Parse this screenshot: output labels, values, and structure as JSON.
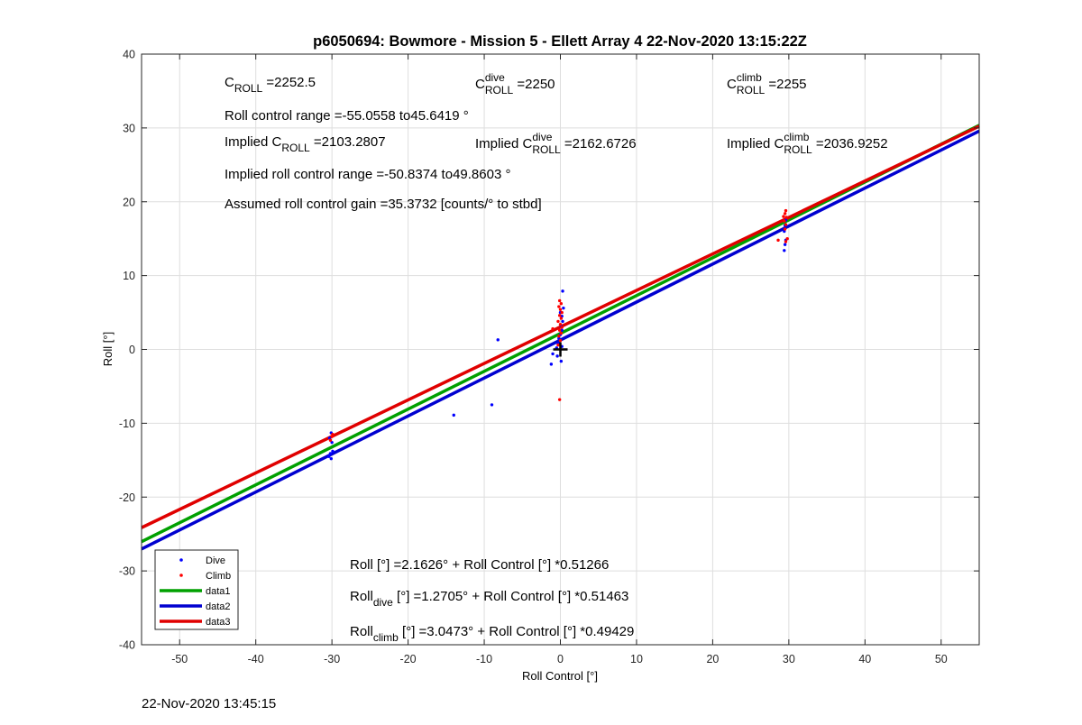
{
  "chart_data": {
    "type": "scatter",
    "title": "p6050694: Bowmore - Mission 5 - Ellett Array 4 22-Nov-2020 13:15:22Z",
    "xlabel": "Roll Control [°]",
    "ylabel": "Roll [°]",
    "xlim": [
      -55,
      55
    ],
    "ylim": [
      -40,
      40
    ],
    "xticks": [
      -50,
      -40,
      -30,
      -20,
      -10,
      0,
      10,
      20,
      30,
      40,
      50
    ],
    "yticks": [
      -40,
      -30,
      -20,
      -10,
      0,
      10,
      20,
      30,
      40
    ],
    "grid": true,
    "legend_position": "bottom-left",
    "series": [
      {
        "name": "Dive",
        "kind": "points",
        "color": "#0000ff",
        "points": [
          [
            -30.1,
            -11.3
          ],
          [
            -30.3,
            -12.0
          ],
          [
            -30.0,
            -12.6
          ],
          [
            -30.2,
            -14.1
          ],
          [
            -30.4,
            -14.5
          ],
          [
            -30.1,
            -14.8
          ],
          [
            -29.9,
            -13.8
          ],
          [
            -14.0,
            -8.9
          ],
          [
            -9.0,
            -7.5
          ],
          [
            -8.2,
            1.3
          ],
          [
            -1.2,
            -2.0
          ],
          [
            -1.0,
            -0.6
          ],
          [
            -0.5,
            0.2
          ],
          [
            -0.3,
            0.8
          ],
          [
            -0.2,
            1.5
          ],
          [
            0.0,
            2.0
          ],
          [
            0.2,
            2.6
          ],
          [
            0.1,
            3.2
          ],
          [
            0.3,
            3.8
          ],
          [
            0.2,
            4.5
          ],
          [
            0.0,
            5.0
          ],
          [
            0.4,
            5.6
          ],
          [
            0.3,
            7.9
          ],
          [
            0.1,
            -1.6
          ],
          [
            -0.4,
            -0.9
          ],
          [
            0.2,
            0.4
          ],
          [
            29.4,
            13.4
          ],
          [
            29.5,
            14.2
          ],
          [
            29.6,
            14.8
          ],
          [
            29.4,
            16.0
          ],
          [
            29.5,
            16.8
          ],
          [
            29.6,
            17.5
          ]
        ]
      },
      {
        "name": "Climb",
        "kind": "points",
        "color": "#ff0000",
        "points": [
          [
            -30.0,
            -11.8
          ],
          [
            -30.2,
            -12.3
          ],
          [
            -29.9,
            -11.5
          ],
          [
            -0.1,
            -6.8
          ],
          [
            -0.3,
            0.6
          ],
          [
            0.0,
            1.2
          ],
          [
            -0.2,
            1.8
          ],
          [
            0.1,
            2.2
          ],
          [
            -0.1,
            2.6
          ],
          [
            0.2,
            3.0
          ],
          [
            0.0,
            3.4
          ],
          [
            -0.3,
            3.8
          ],
          [
            0.1,
            4.2
          ],
          [
            -0.1,
            4.6
          ],
          [
            0.2,
            5.0
          ],
          [
            0.0,
            5.4
          ],
          [
            -0.2,
            5.8
          ],
          [
            0.1,
            6.2
          ],
          [
            -0.1,
            6.6
          ],
          [
            -1.0,
            2.8
          ],
          [
            28.6,
            14.8
          ],
          [
            29.6,
            14.6
          ],
          [
            29.8,
            15.0
          ],
          [
            29.5,
            16.3
          ],
          [
            29.6,
            16.9
          ],
          [
            29.4,
            17.4
          ],
          [
            29.7,
            17.9
          ],
          [
            29.5,
            18.4
          ],
          [
            29.6,
            18.8
          ],
          [
            29.3,
            18.0
          ]
        ]
      },
      {
        "name": "data1",
        "kind": "line",
        "color": "#00a000",
        "intercept": 2.1626,
        "slope": 0.51266
      },
      {
        "name": "data2",
        "kind": "line",
        "color": "#0000d0",
        "intercept": 1.2705,
        "slope": 0.51463
      },
      {
        "name": "data3",
        "kind": "line",
        "color": "#e00000",
        "intercept": 3.0473,
        "slope": 0.49429
      }
    ],
    "origin_marker": {
      "x": 0,
      "y": 0,
      "symbol": "+"
    },
    "annotations": {
      "c_roll": {
        "base": "C",
        "sub": "ROLL",
        "sup": "",
        "value": "=2252.5"
      },
      "c_roll_dive": {
        "base": "C",
        "sub": "ROLL",
        "sup": "dive",
        "value": "=2250"
      },
      "c_roll_climb": {
        "base": "C",
        "sub": "ROLL",
        "sup": "climb",
        "value": "=2255"
      },
      "roll_control_range": "Roll control range =-55.0558 to45.6419 °",
      "implied_c_roll": {
        "prefix": "Implied ",
        "base": "C",
        "sub": "ROLL",
        "sup": "",
        "value": "=2103.2807"
      },
      "implied_c_roll_dive": {
        "prefix": "Implied ",
        "base": "C",
        "sub": "ROLL",
        "sup": "dive",
        "value": "=2162.6726"
      },
      "implied_c_roll_climb": {
        "prefix": "Implied ",
        "base": "C",
        "sub": "ROLL",
        "sup": "climb",
        "value": "=2036.9252"
      },
      "implied_range": "Implied roll control range =-50.8374 to49.8603 °",
      "gain": "Assumed roll control gain =35.3732 [counts/° to stbd]",
      "fit_all": {
        "lead": "Roll",
        "sub": "",
        "rest": " [°] =2.1626° + Roll Control [°] *0.51266"
      },
      "fit_dive": {
        "lead": "Roll",
        "sub": "dive",
        "rest": " [°] =1.2705° + Roll Control [°] *0.51463"
      },
      "fit_climb": {
        "lead": "Roll",
        "sub": "climb",
        "rest": " [°] =3.0473° + Roll Control [°] *0.49429"
      }
    }
  },
  "footer": {
    "timestamp": "22-Nov-2020 13:45:15"
  }
}
